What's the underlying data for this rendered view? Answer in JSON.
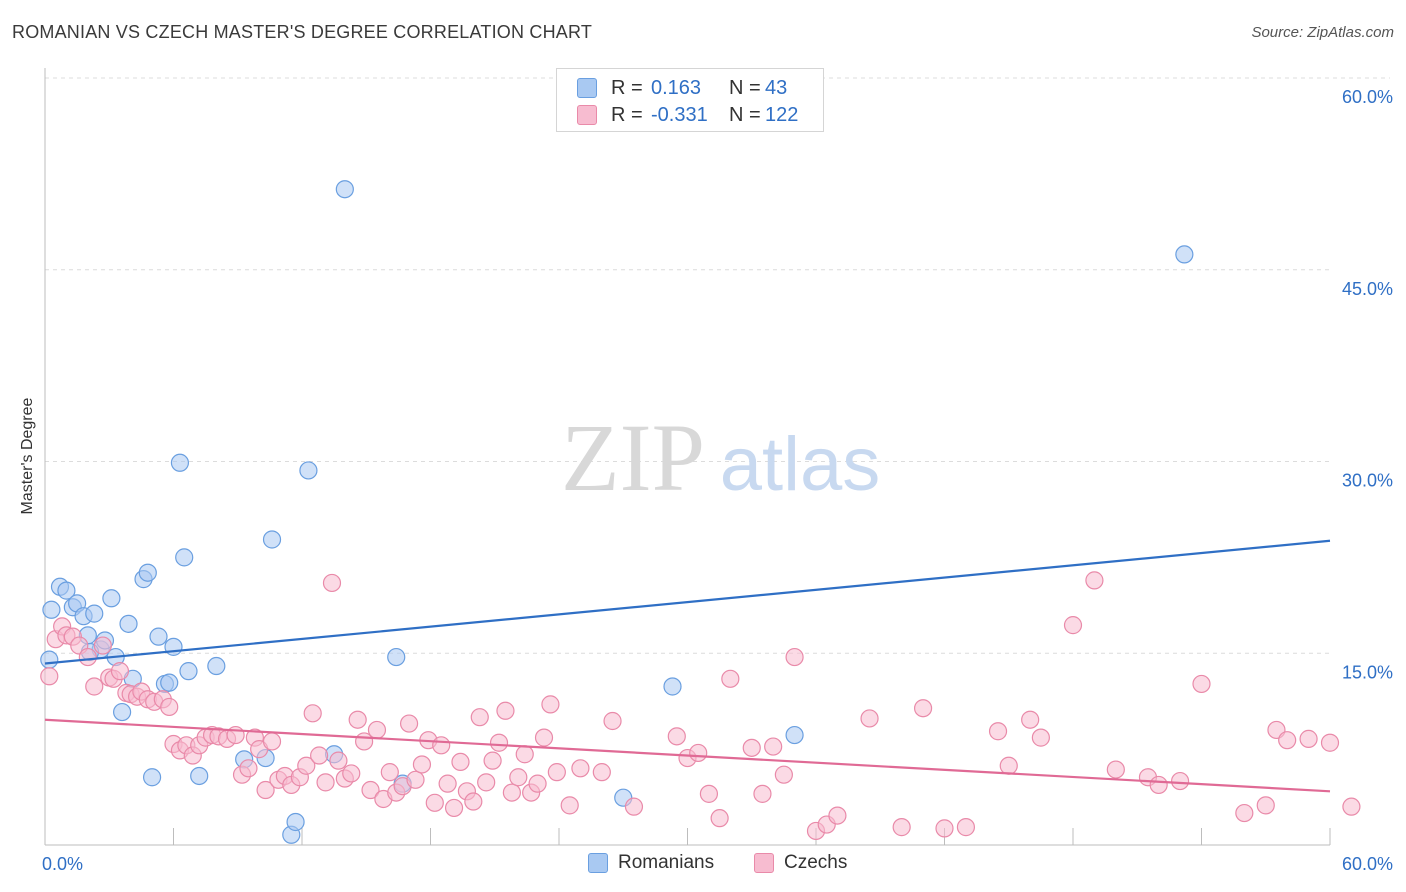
{
  "title": "ROMANIAN VS CZECH MASTER'S DEGREE CORRELATION CHART",
  "source": "Source: ZipAtlas.com",
  "legend": {
    "rows": [
      {
        "series": "Romanians",
        "r_label": "R =",
        "r_value": "0.163",
        "n_label": "N =",
        "n_value": "43",
        "fill": "#a9c9f2",
        "stroke": "#6a9fe0"
      },
      {
        "series": "Czechs",
        "r_label": "R =",
        "r_value": "-0.331",
        "n_label": "N =",
        "n_value": "122",
        "fill": "#f7bcd0",
        "stroke": "#e98aa9"
      }
    ]
  },
  "bottom_legend": [
    "Romanians",
    "Czechs"
  ],
  "watermark": {
    "zip": "ZIP",
    "atlas": "atlas"
  },
  "chart_data": {
    "type": "scatter",
    "title": "ROMANIAN VS CZECH MASTER'S DEGREE CORRELATION CHART",
    "xlabel": "",
    "ylabel": "Master's Degree",
    "xlim": [
      0,
      60
    ],
    "ylim": [
      0,
      60
    ],
    "x_tick_labels": [
      "0.0%",
      "60.0%"
    ],
    "y_ticks": [
      15,
      30,
      45,
      60
    ],
    "y_tick_labels": [
      "15.0%",
      "30.0%",
      "45.0%",
      "60.0%"
    ],
    "grid": true,
    "colors": {
      "romanians_line": "#2f6fc5",
      "czechs_line": "#e06a95",
      "axis_text": "#2f6fc5"
    },
    "series": [
      {
        "name": "Romanians",
        "color": "#a9c9f2",
        "trend": {
          "x": [
            0,
            60
          ],
          "y": [
            14.2,
            23.8
          ]
        },
        "points": [
          [
            0.3,
            18.4
          ],
          [
            0.7,
            20.2
          ],
          [
            1.0,
            19.9
          ],
          [
            1.3,
            18.6
          ],
          [
            1.5,
            18.9
          ],
          [
            1.8,
            17.9
          ],
          [
            2.0,
            16.4
          ],
          [
            2.3,
            18.1
          ],
          [
            2.6,
            15.3
          ],
          [
            2.8,
            16.0
          ],
          [
            3.1,
            19.3
          ],
          [
            3.3,
            14.7
          ],
          [
            3.6,
            10.4
          ],
          [
            3.9,
            17.3
          ],
          [
            4.1,
            13.0
          ],
          [
            4.6,
            20.8
          ],
          [
            4.8,
            21.3
          ],
          [
            5.0,
            5.3
          ],
          [
            5.3,
            16.3
          ],
          [
            5.6,
            12.6
          ],
          [
            5.8,
            12.7
          ],
          [
            6.0,
            15.5
          ],
          [
            6.3,
            29.9
          ],
          [
            6.5,
            22.5
          ],
          [
            6.7,
            13.6
          ],
          [
            7.2,
            5.4
          ],
          [
            8.0,
            14.0
          ],
          [
            9.3,
            6.7
          ],
          [
            10.3,
            6.8
          ],
          [
            10.6,
            23.9
          ],
          [
            11.5,
            0.8
          ],
          [
            11.7,
            1.8
          ],
          [
            12.3,
            29.3
          ],
          [
            13.5,
            7.1
          ],
          [
            14.0,
            51.3
          ],
          [
            16.4,
            14.7
          ],
          [
            16.7,
            4.8
          ],
          [
            27.0,
            3.7
          ],
          [
            29.3,
            12.4
          ],
          [
            35.0,
            8.6
          ],
          [
            53.2,
            46.2
          ],
          [
            0.2,
            14.5
          ],
          [
            2.1,
            15.1
          ]
        ]
      },
      {
        "name": "Czechs",
        "color": "#f7bcd0",
        "trend": {
          "x": [
            0,
            60
          ],
          "y": [
            9.8,
            4.2
          ]
        },
        "points": [
          [
            0.2,
            13.2
          ],
          [
            0.5,
            16.1
          ],
          [
            0.8,
            17.1
          ],
          [
            1.0,
            16.4
          ],
          [
            1.3,
            16.3
          ],
          [
            1.6,
            15.6
          ],
          [
            2.0,
            14.7
          ],
          [
            2.3,
            12.4
          ],
          [
            2.7,
            15.6
          ],
          [
            3.0,
            13.1
          ],
          [
            3.2,
            13.0
          ],
          [
            3.5,
            13.6
          ],
          [
            3.8,
            11.9
          ],
          [
            4.0,
            11.8
          ],
          [
            4.3,
            11.6
          ],
          [
            4.5,
            12.0
          ],
          [
            4.8,
            11.4
          ],
          [
            5.1,
            11.2
          ],
          [
            5.5,
            11.4
          ],
          [
            5.8,
            10.8
          ],
          [
            6.0,
            7.9
          ],
          [
            6.3,
            7.4
          ],
          [
            6.6,
            7.8
          ],
          [
            6.9,
            7.0
          ],
          [
            7.2,
            7.8
          ],
          [
            7.5,
            8.4
          ],
          [
            7.8,
            8.6
          ],
          [
            8.1,
            8.5
          ],
          [
            8.5,
            8.3
          ],
          [
            8.9,
            8.6
          ],
          [
            9.2,
            5.5
          ],
          [
            9.5,
            6.0
          ],
          [
            9.8,
            8.4
          ],
          [
            10.0,
            7.5
          ],
          [
            10.3,
            4.3
          ],
          [
            10.6,
            8.1
          ],
          [
            10.9,
            5.1
          ],
          [
            11.2,
            5.4
          ],
          [
            11.5,
            4.7
          ],
          [
            11.9,
            5.3
          ],
          [
            12.2,
            6.2
          ],
          [
            12.5,
            10.3
          ],
          [
            12.8,
            7.0
          ],
          [
            13.1,
            4.9
          ],
          [
            13.4,
            20.5
          ],
          [
            13.7,
            6.6
          ],
          [
            14.0,
            5.2
          ],
          [
            14.3,
            5.6
          ],
          [
            14.6,
            9.8
          ],
          [
            14.9,
            8.1
          ],
          [
            15.2,
            4.3
          ],
          [
            15.5,
            9.0
          ],
          [
            15.8,
            3.6
          ],
          [
            16.1,
            5.7
          ],
          [
            16.4,
            4.1
          ],
          [
            16.7,
            4.6
          ],
          [
            17.0,
            9.5
          ],
          [
            17.3,
            5.1
          ],
          [
            17.6,
            6.3
          ],
          [
            17.9,
            8.2
          ],
          [
            18.2,
            3.3
          ],
          [
            18.5,
            7.8
          ],
          [
            18.8,
            4.8
          ],
          [
            19.1,
            2.9
          ],
          [
            19.4,
            6.5
          ],
          [
            19.7,
            4.2
          ],
          [
            20.0,
            3.4
          ],
          [
            20.3,
            10.0
          ],
          [
            20.6,
            4.9
          ],
          [
            20.9,
            6.6
          ],
          [
            21.2,
            8.0
          ],
          [
            21.5,
            10.5
          ],
          [
            21.8,
            4.1
          ],
          [
            22.1,
            5.3
          ],
          [
            22.4,
            7.1
          ],
          [
            22.7,
            4.1
          ],
          [
            23.0,
            4.8
          ],
          [
            23.3,
            8.4
          ],
          [
            23.6,
            11.0
          ],
          [
            23.9,
            5.7
          ],
          [
            24.5,
            3.1
          ],
          [
            25.0,
            6.0
          ],
          [
            26.0,
            5.7
          ],
          [
            26.5,
            9.7
          ],
          [
            27.5,
            3.0
          ],
          [
            29.5,
            8.5
          ],
          [
            30.0,
            6.8
          ],
          [
            30.5,
            7.2
          ],
          [
            31.0,
            4.0
          ],
          [
            31.5,
            2.1
          ],
          [
            32.0,
            13.0
          ],
          [
            33.0,
            7.6
          ],
          [
            33.5,
            4.0
          ],
          [
            34.0,
            7.7
          ],
          [
            34.5,
            5.5
          ],
          [
            35.0,
            14.7
          ],
          [
            36.0,
            1.1
          ],
          [
            36.5,
            1.6
          ],
          [
            37.0,
            2.3
          ],
          [
            38.5,
            9.9
          ],
          [
            40.0,
            1.4
          ],
          [
            41.0,
            10.7
          ],
          [
            42.0,
            1.3
          ],
          [
            43.0,
            1.4
          ],
          [
            44.5,
            8.9
          ],
          [
            45.0,
            6.2
          ],
          [
            46.0,
            9.8
          ],
          [
            46.5,
            8.4
          ],
          [
            48.0,
            17.2
          ],
          [
            49.0,
            20.7
          ],
          [
            50.0,
            5.9
          ],
          [
            51.5,
            5.3
          ],
          [
            52.0,
            4.7
          ],
          [
            53.0,
            5.0
          ],
          [
            54.0,
            12.6
          ],
          [
            56.0,
            2.5
          ],
          [
            57.0,
            3.1
          ],
          [
            57.5,
            9.0
          ],
          [
            58.0,
            8.2
          ],
          [
            59.0,
            8.3
          ],
          [
            60.0,
            8.0
          ],
          [
            61.0,
            3.0
          ]
        ]
      }
    ]
  }
}
